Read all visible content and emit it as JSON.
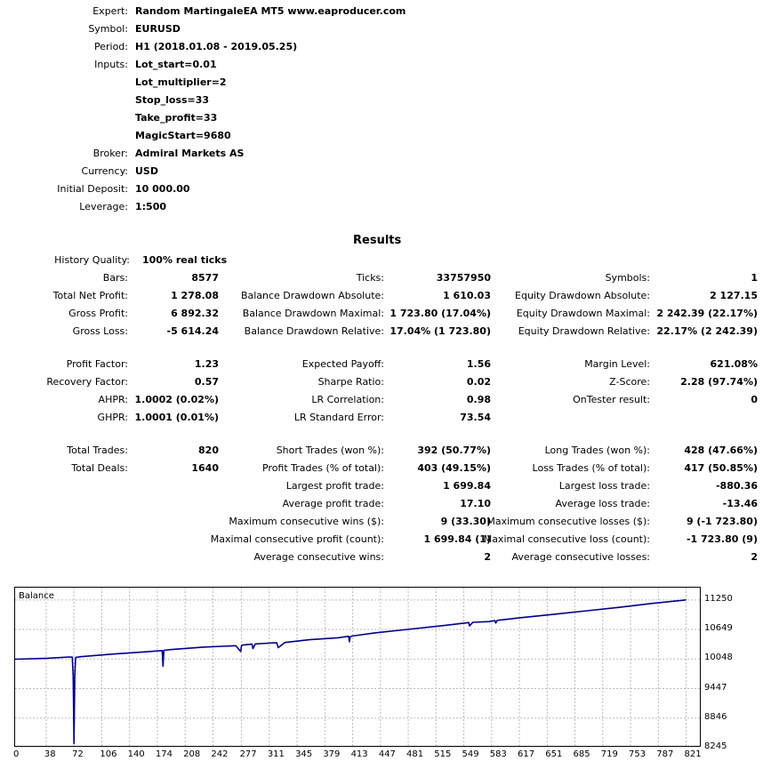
{
  "header": {
    "rows": [
      {
        "label": "Expert:",
        "value": "Random MartingaleEA MT5 www.eaproducer.com"
      },
      {
        "label": "Symbol:",
        "value": "EURUSD"
      },
      {
        "label": "Period:",
        "value": "H1 (2018.01.08 - 2019.05.25)"
      },
      {
        "label": "Inputs:",
        "value": "Lot_start=0.01"
      },
      {
        "label": "",
        "value": "Lot_multiplier=2"
      },
      {
        "label": "",
        "value": "Stop_loss=33"
      },
      {
        "label": "",
        "value": "Take_profit=33"
      },
      {
        "label": "",
        "value": "MagicStart=9680"
      },
      {
        "label": "Broker:",
        "value": "Admiral Markets AS"
      },
      {
        "label": "Currency:",
        "value": "USD"
      },
      {
        "label": "Initial Deposit:",
        "value": "10 000.00"
      },
      {
        "label": "Leverage:",
        "value": "1:500"
      }
    ]
  },
  "results": {
    "title": "Results",
    "history_quality": {
      "label": "History Quality:",
      "value": "100% real ticks"
    },
    "col1": [
      {
        "label": "Bars:",
        "value": "8577"
      },
      {
        "label": "Total Net Profit:",
        "value": "1 278.08"
      },
      {
        "label": "Gross Profit:",
        "value": "6 892.32"
      },
      {
        "label": "Gross Loss:",
        "value": "-5 614.24"
      },
      {
        "label": "Profit Factor:",
        "value": "1.23"
      },
      {
        "label": "Recovery Factor:",
        "value": "0.57"
      },
      {
        "label": "AHPR:",
        "value": "1.0002 (0.02%)"
      },
      {
        "label": "GHPR:",
        "value": "1.0001 (0.01%)"
      },
      {
        "label": "Total Trades:",
        "value": "820"
      },
      {
        "label": "Total Deals:",
        "value": "1640"
      }
    ],
    "col2": [
      {
        "label": "Ticks:",
        "value": "33757950"
      },
      {
        "label": "Balance Drawdown Absolute:",
        "value": "1 610.03"
      },
      {
        "label": "Balance Drawdown Maximal:",
        "value": "1 723.80 (17.04%)"
      },
      {
        "label": "Balance Drawdown Relative:",
        "value": "17.04% (1 723.80)"
      },
      {
        "label": "Expected Payoff:",
        "value": "1.56"
      },
      {
        "label": "Sharpe Ratio:",
        "value": "0.02"
      },
      {
        "label": "LR Correlation:",
        "value": "0.98"
      },
      {
        "label": "LR Standard Error:",
        "value": "73.54"
      },
      {
        "label": "Short Trades (won %):",
        "value": "392 (50.77%)"
      },
      {
        "label": "Profit Trades (% of total):",
        "value": "403 (49.15%)"
      },
      {
        "label": "Largest profit trade:",
        "value": "1 699.84"
      },
      {
        "label": "Average profit trade:",
        "value": "17.10"
      },
      {
        "label": "Maximum consecutive wins ($):",
        "value": "9 (33.30)"
      },
      {
        "label": "Maximal consecutive profit (count):",
        "value": "1 699.84 (1)"
      },
      {
        "label": "Average consecutive wins:",
        "value": "2"
      }
    ],
    "col3": [
      {
        "label": "Symbols:",
        "value": "1"
      },
      {
        "label": "Equity Drawdown Absolute:",
        "value": "2 127.15"
      },
      {
        "label": "Equity Drawdown Maximal:",
        "value": "2 242.39 (22.17%)"
      },
      {
        "label": "Equity Drawdown Relative:",
        "value": "22.17% (2 242.39)"
      },
      {
        "label": "Margin Level:",
        "value": "621.08%"
      },
      {
        "label": "Z-Score:",
        "value": "2.28 (97.74%)"
      },
      {
        "label": "OnTester result:",
        "value": "0"
      },
      {
        "label": "Long Trades (won %):",
        "value": "428 (47.66%)"
      },
      {
        "label": "Loss Trades (% of total):",
        "value": "417 (50.85%)"
      },
      {
        "label": "Largest loss trade:",
        "value": "-880.36"
      },
      {
        "label": "Average loss trade:",
        "value": "-13.46"
      },
      {
        "label": "Maximum consecutive losses ($):",
        "value": "9 (-1 723.80)"
      },
      {
        "label": "Maximal consecutive loss (count):",
        "value": "-1 723.80 (9)"
      },
      {
        "label": "Average consecutive losses:",
        "value": "2"
      }
    ]
  },
  "chart_data": {
    "type": "line",
    "title": "Balance",
    "xlabel": "",
    "ylabel": "",
    "x_ticks": [
      0,
      38,
      72,
      106,
      140,
      174,
      208,
      242,
      277,
      311,
      345,
      379,
      413,
      447,
      481,
      515,
      549,
      583,
      617,
      651,
      685,
      719,
      753,
      787,
      821
    ],
    "y_ticks": [
      8245,
      8846,
      9447,
      10048,
      10649,
      11250
    ],
    "xlim": [
      0,
      840
    ],
    "ylim": [
      8245,
      11500
    ],
    "grid": true,
    "series": [
      {
        "name": "Balance",
        "color": "#00008b",
        "x": [
          0,
          40,
          66,
          70,
          71,
          72,
          73,
          74,
          80,
          120,
          160,
          180,
          181,
          182,
          190,
          230,
          270,
          276,
          277,
          280,
          290,
          291,
          294,
          300,
          320,
          322,
          330,
          360,
          395,
          408,
          409,
          410,
          412,
          440,
          480,
          520,
          555,
          556,
          560,
          580,
          587,
          588,
          590,
          620,
          660,
          700,
          740,
          780,
          821
        ],
        "y": [
          10045,
          10065,
          10090,
          10085,
          9700,
          8330,
          9700,
          10080,
          10095,
          10150,
          10195,
          10220,
          9900,
          10225,
          10240,
          10290,
          10320,
          10200,
          10325,
          10335,
          10350,
          10260,
          10355,
          10360,
          10380,
          10280,
          10385,
          10440,
          10480,
          10510,
          10400,
          10500,
          10515,
          10580,
          10650,
          10720,
          10790,
          10720,
          10795,
          10810,
          10830,
          10780,
          10835,
          10890,
          10960,
          11030,
          11100,
          11180,
          11250
        ]
      }
    ]
  }
}
